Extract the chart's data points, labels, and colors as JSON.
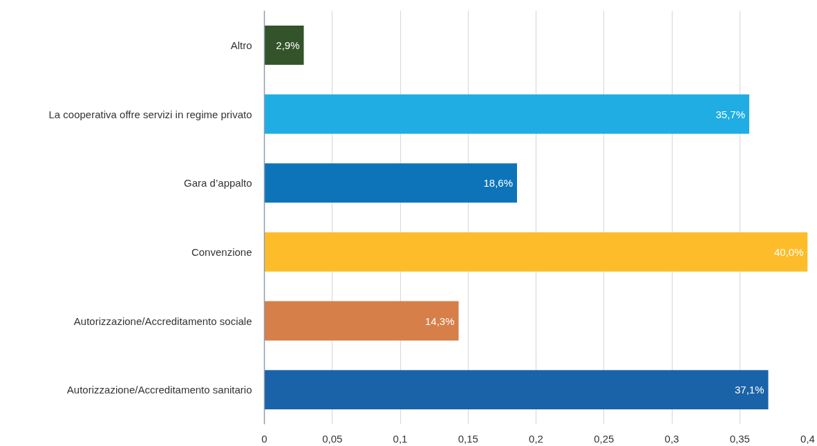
{
  "chart_data": {
    "type": "bar",
    "orientation": "horizontal",
    "categories": [
      "Altro",
      "La cooperativa offre servizi in regime privato",
      "Gara d’appalto",
      "Convenzione",
      "Autorizzazione/Accreditamento sociale",
      "Autorizzazione/Accreditamento sanitario"
    ],
    "values": [
      0.029,
      0.357,
      0.186,
      0.4,
      0.143,
      0.371
    ],
    "colors": [
      "#33532a",
      "#1fade4",
      "#0e74b9",
      "#fdbd2a",
      "#d67f48",
      "#1b63a8"
    ],
    "value_labels": [
      "2,9%",
      "35,7%",
      "18,6%",
      "40,0%",
      "14,3%",
      "37,1%"
    ],
    "xlim": [
      0,
      0.4
    ],
    "xticks": [
      0,
      {
        "value": 0.05,
        "label": "0,05"
      },
      {
        "value": 0.1,
        "label": "0,1"
      },
      {
        "value": 0.15,
        "label": "0,15"
      },
      {
        "value": 0.2,
        "label": "0,2"
      },
      {
        "value": 0.25,
        "label": "0,25"
      },
      {
        "value": 0.3,
        "label": "0,3"
      },
      {
        "value": 0.35,
        "label": "0,35"
      },
      {
        "value": 0.4,
        "label": "0,4"
      }
    ],
    "grid": "x"
  }
}
